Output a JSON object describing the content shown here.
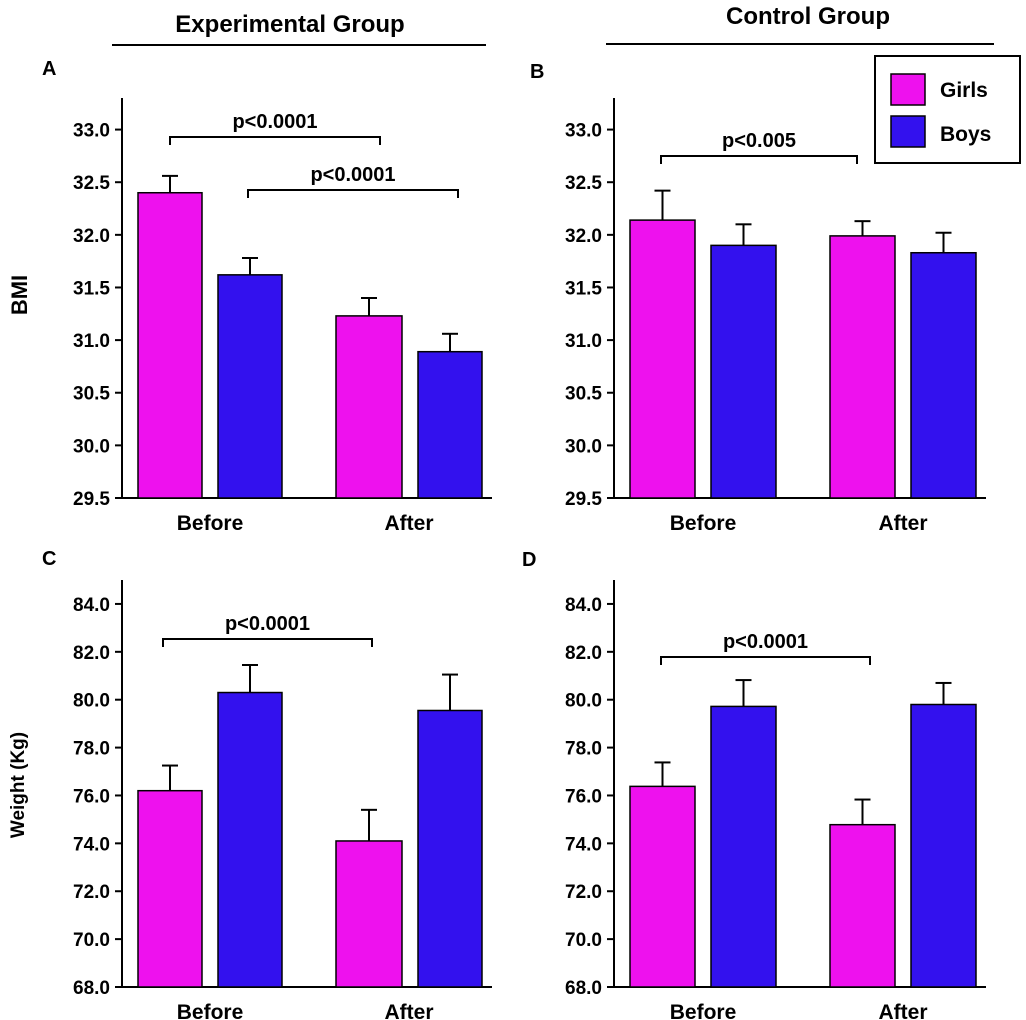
{
  "colors": {
    "girls": "#ee11ee",
    "boys": "#3311ee"
  },
  "group_titles": {
    "experimental": "Experimental Group",
    "control": "Control Group"
  },
  "legend": {
    "girls": "Girls",
    "boys": "Boys"
  },
  "chart_data": [
    {
      "panel": "A",
      "type": "bar",
      "categories": [
        "Before",
        "After"
      ],
      "series": [
        {
          "name": "Girls",
          "values": [
            32.4,
            31.23
          ],
          "errors": [
            0.16,
            0.17
          ]
        },
        {
          "name": "Boys",
          "values": [
            31.62,
            30.89
          ],
          "errors": [
            0.16,
            0.17
          ]
        }
      ],
      "ylabel": "BMI",
      "ylim": [
        29.5,
        33.3
      ],
      "yticks": [
        "29.5",
        "30.0",
        "30.5",
        "31.0",
        "31.5",
        "32.0",
        "32.5",
        "33.0"
      ],
      "annotations": [
        {
          "text": "p<0.0001",
          "from": "Before Girls",
          "to": "After Girls"
        },
        {
          "text": "p<0.0001",
          "from": "Before Boys",
          "to": "After Boys"
        }
      ]
    },
    {
      "panel": "B",
      "type": "bar",
      "categories": [
        "Before",
        "After"
      ],
      "series": [
        {
          "name": "Girls",
          "values": [
            32.14,
            31.99
          ],
          "errors": [
            0.28,
            0.14
          ]
        },
        {
          "name": "Boys",
          "values": [
            31.9,
            31.83
          ],
          "errors": [
            0.2,
            0.19
          ]
        }
      ],
      "ylabel": "",
      "ylim": [
        29.5,
        33.3
      ],
      "yticks": [
        "29.5",
        "30.0",
        "30.5",
        "31.0",
        "31.5",
        "32.0",
        "32.5",
        "33.0"
      ],
      "annotations": [
        {
          "text": "p<0.005",
          "from": "Before Girls",
          "to": "After Girls"
        }
      ]
    },
    {
      "panel": "C",
      "type": "bar",
      "categories": [
        "Before",
        "After"
      ],
      "series": [
        {
          "name": "Girls",
          "values": [
            76.2,
            74.1
          ],
          "errors": [
            1.05,
            1.3
          ]
        },
        {
          "name": "Boys",
          "values": [
            80.3,
            79.55
          ],
          "errors": [
            1.15,
            1.5
          ]
        }
      ],
      "ylabel": "Weight (Kg)",
      "ylim": [
        68.0,
        85.0
      ],
      "yticks": [
        "68.0",
        "70.0",
        "72.0",
        "74.0",
        "76.0",
        "78.0",
        "80.0",
        "82.0",
        "84.0"
      ],
      "annotations": [
        {
          "text": "p<0.0001",
          "from": "Before Girls",
          "to": "After Girls"
        }
      ]
    },
    {
      "panel": "D",
      "type": "bar",
      "categories": [
        "Before",
        "After"
      ],
      "series": [
        {
          "name": "Girls",
          "values": [
            76.38,
            74.78
          ],
          "errors": [
            1.0,
            1.05
          ]
        },
        {
          "name": "Boys",
          "values": [
            79.72,
            79.8
          ],
          "errors": [
            1.1,
            0.9
          ]
        }
      ],
      "ylabel": "",
      "ylim": [
        68.0,
        85.0
      ],
      "yticks": [
        "68.0",
        "70.0",
        "72.0",
        "74.0",
        "76.0",
        "78.0",
        "80.0",
        "82.0",
        "84.0"
      ],
      "annotations": [
        {
          "text": "p<0.0001",
          "from": "Before Girls",
          "to": "After Girls"
        }
      ]
    }
  ]
}
